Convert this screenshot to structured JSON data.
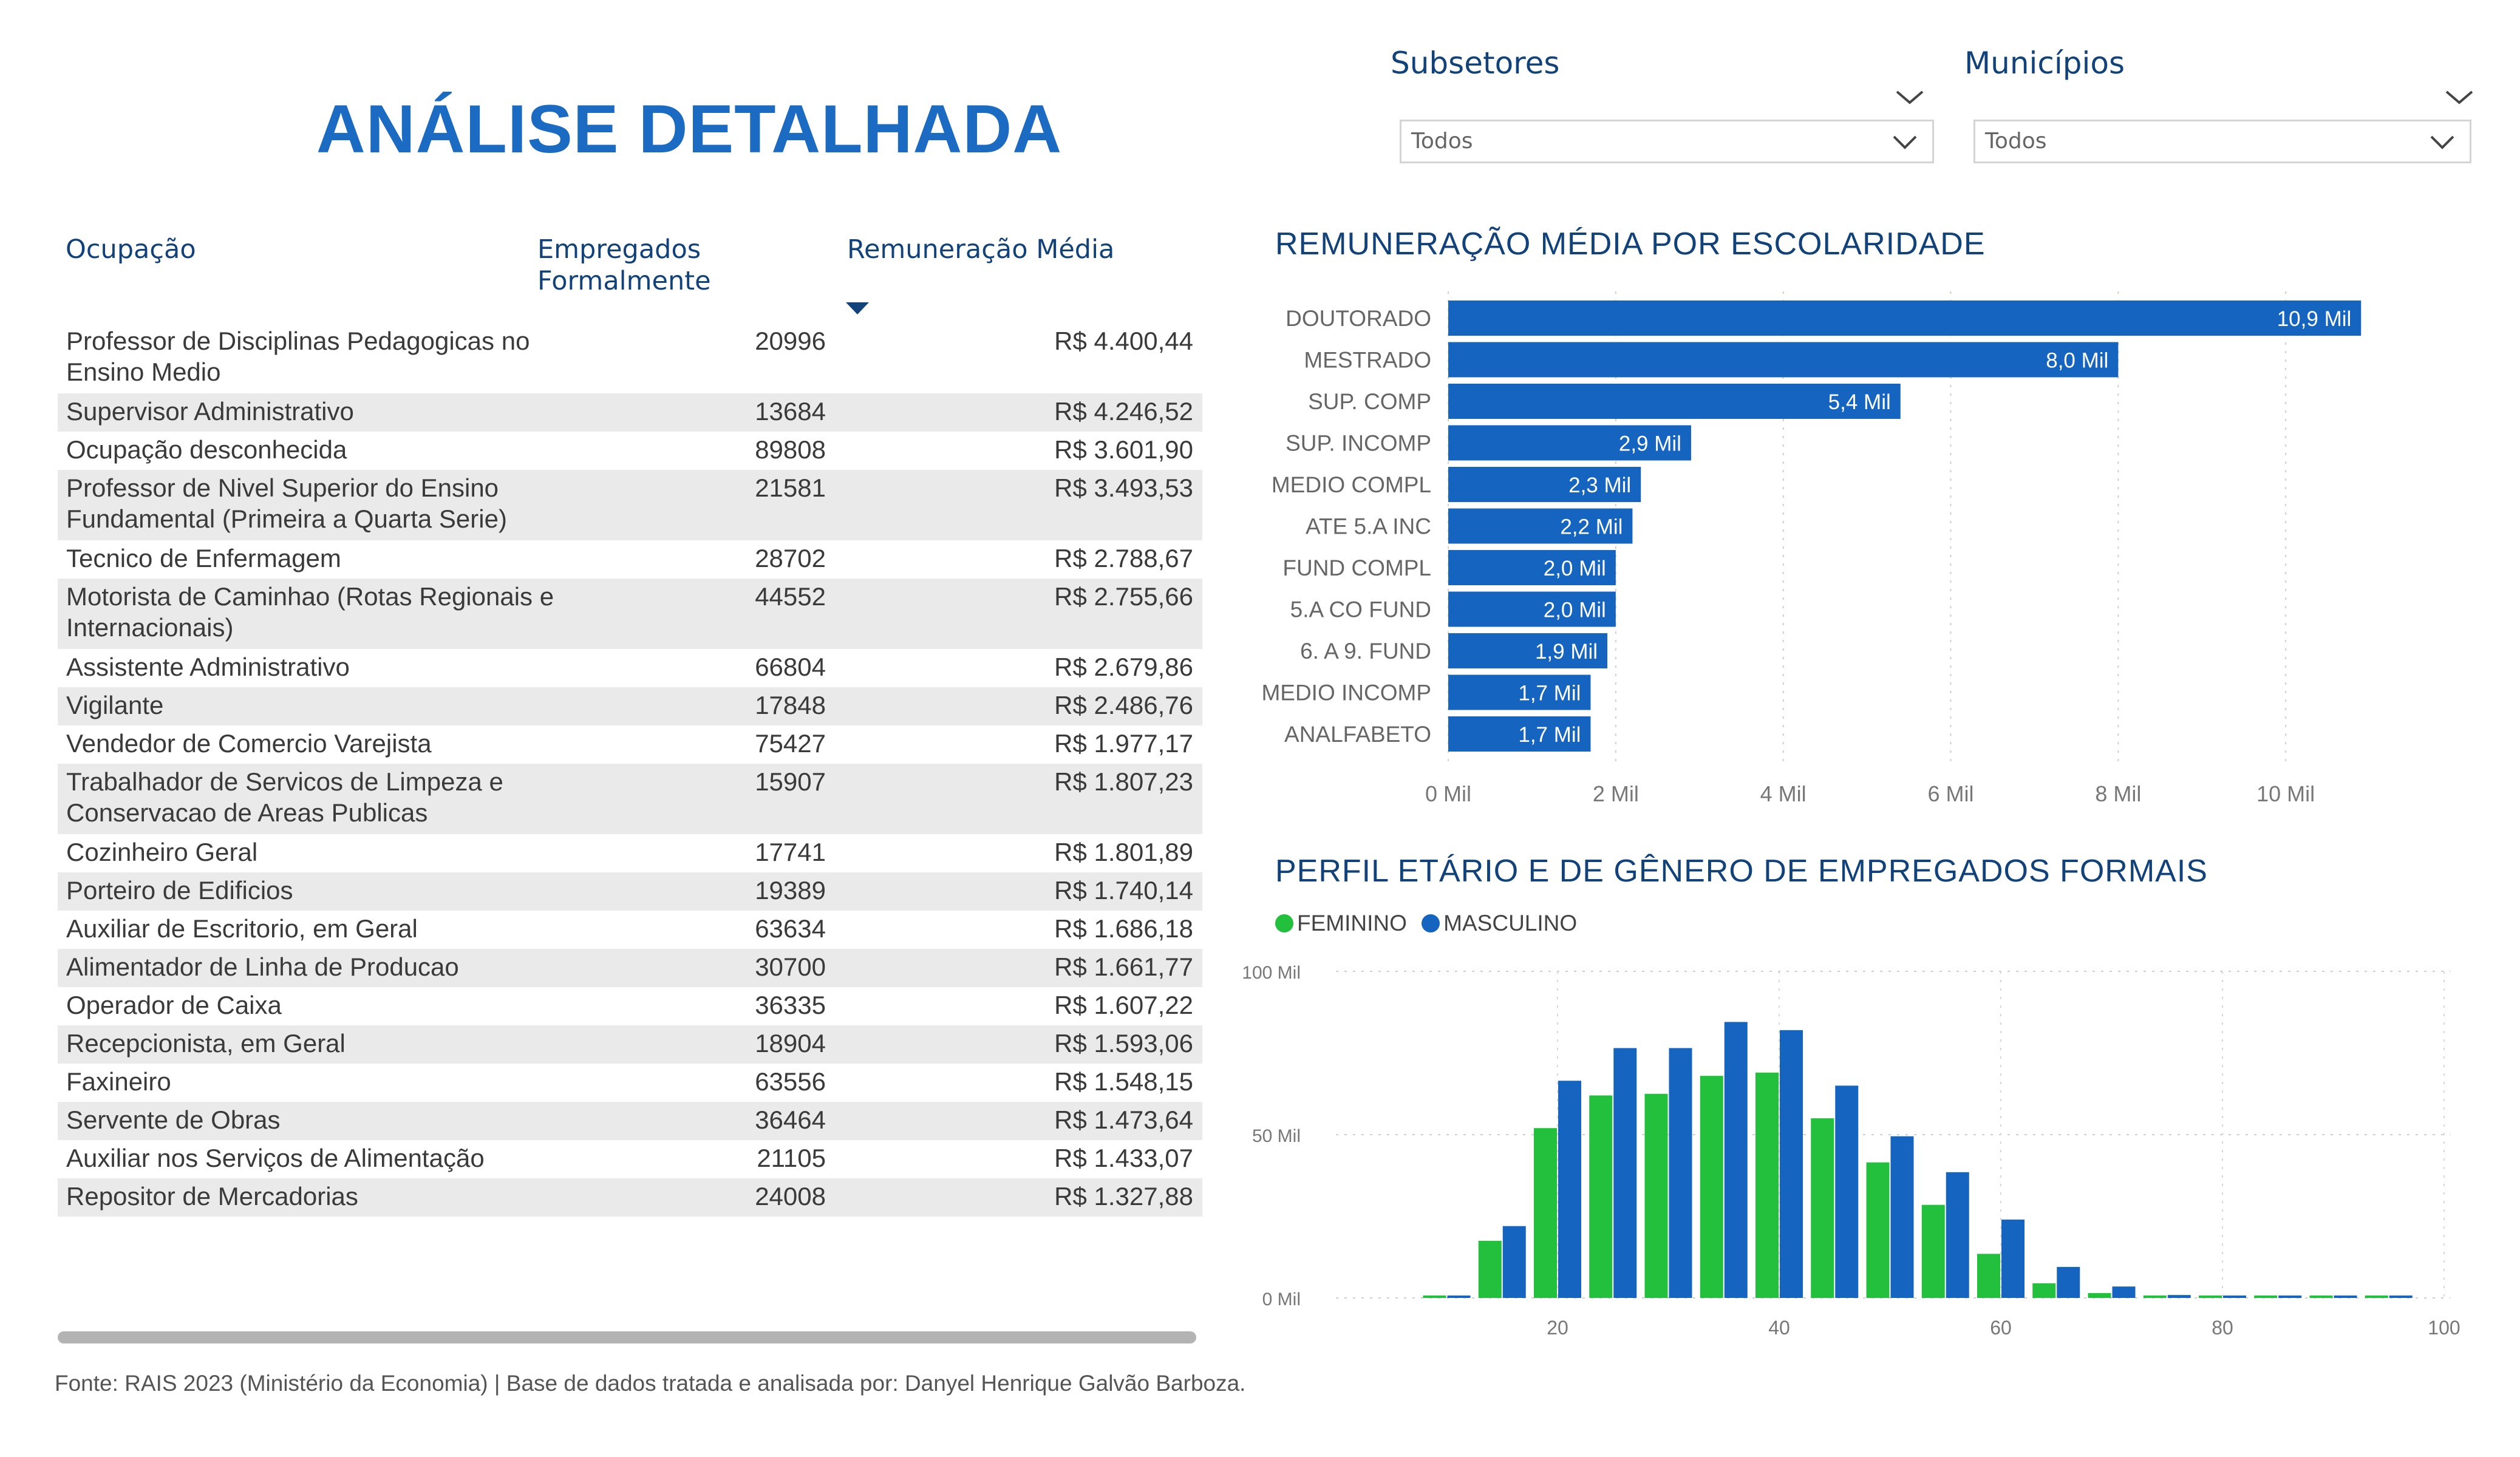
{
  "page": {
    "title": "ANÁLISE DETALHADA",
    "source_note": "Fonte: RAIS 2023 (Ministério da Economia) | Base de dados tratada e analisada por: Danyel Henrique Galvão Barboza."
  },
  "filters": {
    "subsetores": {
      "label": "Subsetores",
      "value": "Todos"
    },
    "municipios": {
      "label": "Municípios",
      "value": "Todos"
    }
  },
  "table": {
    "headers": {
      "ocupacao": "Ocupação",
      "empregados_1": "Empregados",
      "empregados_2": "Formalmente",
      "remuneracao": "Remuneração Média"
    },
    "sort": {
      "column": "remuneracao",
      "direction": "desc"
    },
    "rows": [
      {
        "ocupacao": "Professor de Disciplinas Pedagogicas no Ensino Medio",
        "empregados": "20996",
        "remuneracao": "R$ 4.400,44"
      },
      {
        "ocupacao": "Supervisor Administrativo",
        "empregados": "13684",
        "remuneracao": "R$ 4.246,52"
      },
      {
        "ocupacao": "Ocupação desconhecida",
        "empregados": "89808",
        "remuneracao": "R$ 3.601,90"
      },
      {
        "ocupacao": "Professor de Nivel Superior do Ensino Fundamental (Primeira a Quarta Serie)",
        "empregados": "21581",
        "remuneracao": "R$ 3.493,53"
      },
      {
        "ocupacao": "Tecnico de Enfermagem",
        "empregados": "28702",
        "remuneracao": "R$ 2.788,67"
      },
      {
        "ocupacao": "Motorista de Caminhao (Rotas Regionais e Internacionais)",
        "empregados": "44552",
        "remuneracao": "R$ 2.755,66"
      },
      {
        "ocupacao": "Assistente Administrativo",
        "empregados": "66804",
        "remuneracao": "R$ 2.679,86"
      },
      {
        "ocupacao": "Vigilante",
        "empregados": "17848",
        "remuneracao": "R$ 2.486,76"
      },
      {
        "ocupacao": "Vendedor de Comercio Varejista",
        "empregados": "75427",
        "remuneracao": "R$ 1.977,17"
      },
      {
        "ocupacao": "Trabalhador de Servicos de Limpeza e Conservacao de Areas Publicas",
        "empregados": "15907",
        "remuneracao": "R$ 1.807,23"
      },
      {
        "ocupacao": "Cozinheiro Geral",
        "empregados": "17741",
        "remuneracao": "R$ 1.801,89"
      },
      {
        "ocupacao": "Porteiro de Edificios",
        "empregados": "19389",
        "remuneracao": "R$ 1.740,14"
      },
      {
        "ocupacao": "Auxiliar de Escritorio, em Geral",
        "empregados": "63634",
        "remuneracao": "R$ 1.686,18"
      },
      {
        "ocupacao": "Alimentador de Linha de Producao",
        "empregados": "30700",
        "remuneracao": "R$ 1.661,77"
      },
      {
        "ocupacao": "Operador de Caixa",
        "empregados": "36335",
        "remuneracao": "R$ 1.607,22"
      },
      {
        "ocupacao": "Recepcionista, em Geral",
        "empregados": "18904",
        "remuneracao": "R$ 1.593,06"
      },
      {
        "ocupacao": "Faxineiro",
        "empregados": "63556",
        "remuneracao": "R$ 1.548,15"
      },
      {
        "ocupacao": "Servente de Obras",
        "empregados": "36464",
        "remuneracao": "R$ 1.473,64"
      },
      {
        "ocupacao": "Auxiliar nos Serviços de Alimentação",
        "empregados": "21105",
        "remuneracao": "R$ 1.433,07"
      },
      {
        "ocupacao": "Repositor de Mercadorias",
        "empregados": "24008",
        "remuneracao": "R$ 1.327,88"
      }
    ]
  },
  "colors": {
    "title": "#1c6bc2",
    "header": "#12427a",
    "bar_blue": "#1565c0",
    "bar_green": "#22c03c",
    "row_alt": "#eaeaea"
  },
  "chart_data": [
    {
      "type": "bar",
      "orientation": "horizontal",
      "title": "REMUNERAÇÃO MÉDIA POR ESCOLARIDADE",
      "categories": [
        "DOUTORADO",
        "MESTRADO",
        "SUP. COMP",
        "SUP. INCOMP",
        "MEDIO COMPL",
        "ATE 5.A INC",
        "FUND COMPL",
        "5.A CO FUND",
        "6. A 9. FUND",
        "MEDIO INCOMP",
        "ANALFABETO"
      ],
      "values": [
        10900,
        8000,
        5400,
        2900,
        2300,
        2200,
        2000,
        2000,
        1900,
        1700,
        1700
      ],
      "data_labels": [
        "10,9 Mil",
        "8,0 Mil",
        "5,4 Mil",
        "2,9 Mil",
        "2,3 Mil",
        "2,2 Mil",
        "2,0 Mil",
        "2,0 Mil",
        "1,9 Mil",
        "1,7 Mil",
        "1,7 Mil"
      ],
      "xticks": [
        0,
        2000,
        4000,
        6000,
        8000,
        10000
      ],
      "xtick_labels": [
        "0 Mil",
        "2 Mil",
        "4 Mil",
        "6 Mil",
        "8 Mil",
        "10 Mil"
      ],
      "xlim": [
        0,
        12000
      ],
      "grid": true,
      "color": "#1565c0"
    },
    {
      "type": "bar",
      "title": "PERFIL ETÁRIO E DE GÊNERO DE EMPREGADOS FORMAIS",
      "legend_position": "top-left",
      "x": [
        10,
        15,
        20,
        25,
        30,
        35,
        40,
        45,
        50,
        55,
        60,
        65,
        70,
        75,
        80,
        85,
        90,
        95
      ],
      "series": [
        {
          "name": "FEMININO",
          "color": "#22c03c",
          "values": [
            300,
            17500,
            52000,
            62000,
            62500,
            68000,
            69000,
            55000,
            41500,
            28500,
            13500,
            4500,
            1500,
            400,
            200,
            100,
            100,
            50
          ]
        },
        {
          "name": "MASCULINO",
          "color": "#1565c0",
          "values": [
            500,
            22000,
            66500,
            76500,
            76500,
            84500,
            82000,
            65000,
            49500,
            38500,
            24000,
            9500,
            3500,
            900,
            400,
            200,
            100,
            50
          ]
        }
      ],
      "xticks": [
        20,
        40,
        60,
        80,
        100
      ],
      "xlim": [
        0,
        100
      ],
      "yticks": [
        0,
        50000,
        100000
      ],
      "ytick_labels": [
        "0 Mil",
        "50 Mil",
        "100 Mil"
      ],
      "ylim": [
        0,
        100000
      ],
      "grid": true
    }
  ]
}
